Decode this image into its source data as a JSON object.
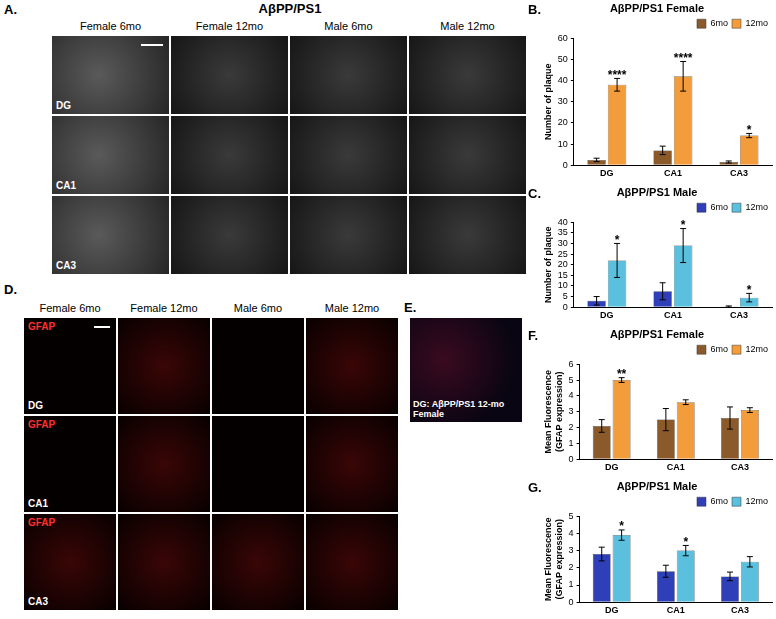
{
  "panels": {
    "A": {
      "letter": "A.",
      "title": "AβPP/PS1",
      "columns": [
        "Female 6mo",
        "Female 12mo",
        "Male 6mo",
        "Male 12mo"
      ],
      "rows": [
        "DG",
        "CA1",
        "CA3"
      ]
    },
    "D": {
      "letter": "D.",
      "stain": "GFAP",
      "columns": [
        "Female 6mo",
        "Female 12mo",
        "Male 6mo",
        "Male 12mo"
      ],
      "rows": [
        "DG",
        "CA1",
        "CA3"
      ]
    },
    "E": {
      "letter": "E.",
      "caption": "DG: AβPP/PS1 12-mo Female"
    }
  },
  "chart_data": [
    {
      "letter": "B.",
      "type": "bar",
      "title": "AβPP/PS1 Female",
      "y_label": "Number of plaque",
      "categories": [
        "DG",
        "CA1",
        "CA3"
      ],
      "series": [
        {
          "name": "6mo",
          "color": "#8B5A2B",
          "values": [
            2.5,
            7,
            1.5
          ],
          "errors": [
            0.8,
            2,
            0.5
          ]
        },
        {
          "name": "12mo",
          "color": "#F39C3C",
          "values": [
            38,
            42,
            14
          ],
          "errors": [
            3,
            7,
            1
          ]
        }
      ],
      "significance": [
        "****",
        "****",
        "*"
      ],
      "ylim": [
        0,
        60
      ],
      "yticks": [
        0,
        10,
        20,
        30,
        40,
        50,
        60
      ],
      "grid": false,
      "legend": "upper right"
    },
    {
      "letter": "C.",
      "type": "bar",
      "title": "AβPP/PS1 Male",
      "y_label": "Number of plaque",
      "categories": [
        "DG",
        "CA1",
        "CA3"
      ],
      "series": [
        {
          "name": "6mo",
          "color": "#2E3FB8",
          "values": [
            3,
            7.5,
            0.3
          ],
          "errors": [
            2,
            4,
            0.3
          ]
        },
        {
          "name": "12mo",
          "color": "#5BC0DE",
          "values": [
            22,
            29,
            4.5
          ],
          "errors": [
            8,
            8,
            2
          ]
        }
      ],
      "significance": [
        "*",
        "*",
        "*"
      ],
      "ylim": [
        0,
        40
      ],
      "yticks": [
        0,
        5,
        10,
        15,
        20,
        25,
        30,
        35,
        40
      ],
      "grid": false,
      "legend": "upper right"
    },
    {
      "letter": "F.",
      "type": "bar",
      "title": "AβPP/PS1 Female",
      "y_label": [
        "Mean Fluorescence",
        "(GFAP expression)"
      ],
      "categories": [
        "DG",
        "CA1",
        "CA3"
      ],
      "series": [
        {
          "name": "6mo",
          "color": "#8B5A2B",
          "values": [
            2.1,
            2.5,
            2.6
          ],
          "errors": [
            0.4,
            0.7,
            0.7
          ]
        },
        {
          "name": "12mo",
          "color": "#F39C3C",
          "values": [
            5.0,
            3.6,
            3.1
          ],
          "errors": [
            0.15,
            0.15,
            0.15
          ]
        }
      ],
      "significance": [
        "**",
        null,
        null
      ],
      "ylim": [
        0,
        6
      ],
      "yticks": [
        0,
        1,
        2,
        3,
        4,
        5,
        6
      ],
      "grid": false,
      "legend": "upper right"
    },
    {
      "letter": "G.",
      "type": "bar",
      "title": "AβPP/PS1 Male",
      "y_label": [
        "Mean Fluorescence",
        "(GFAP expression)"
      ],
      "categories": [
        "DG",
        "CA1",
        "CA3"
      ],
      "series": [
        {
          "name": "6mo",
          "color": "#2E3FB8",
          "values": [
            2.8,
            1.8,
            1.5
          ],
          "errors": [
            0.4,
            0.35,
            0.25
          ]
        },
        {
          "name": "12mo",
          "color": "#5BC0DE",
          "values": [
            3.9,
            3.0,
            2.35
          ],
          "errors": [
            0.3,
            0.3,
            0.3
          ]
        }
      ],
      "significance": [
        "*",
        "*",
        null
      ],
      "ylim": [
        0,
        5
      ],
      "yticks": [
        0,
        1,
        2,
        3,
        4,
        5
      ],
      "grid": false,
      "legend": "upper right"
    }
  ]
}
